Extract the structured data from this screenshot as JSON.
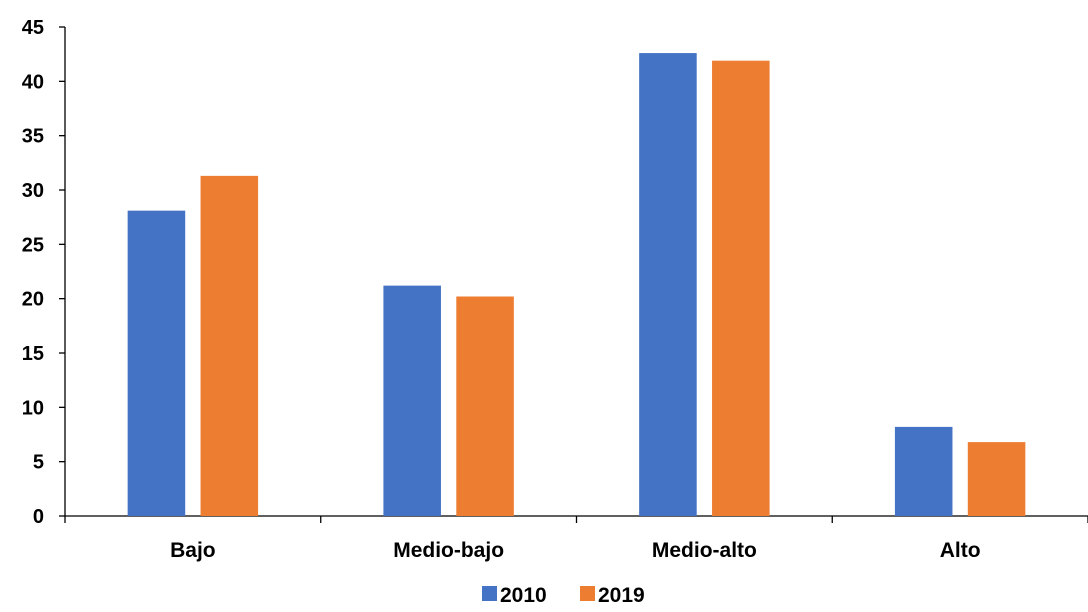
{
  "chart_data": {
    "type": "bar",
    "title": "",
    "xlabel": "",
    "ylabel": "",
    "categories": [
      "Bajo",
      "Medio-bajo",
      "Medio-alto",
      "Alto"
    ],
    "series": [
      {
        "name": "2010",
        "color": "#4472C4",
        "values": [
          28.1,
          21.2,
          42.6,
          8.2
        ]
      },
      {
        "name": "2019",
        "color": "#ED7D31",
        "values": [
          31.3,
          20.2,
          41.9,
          6.8
        ]
      }
    ],
    "ylim": [
      0,
      45
    ],
    "yticks": [
      0,
      5,
      10,
      15,
      20,
      25,
      30,
      35,
      40,
      45
    ],
    "grid": false,
    "legend_position": "bottom"
  }
}
